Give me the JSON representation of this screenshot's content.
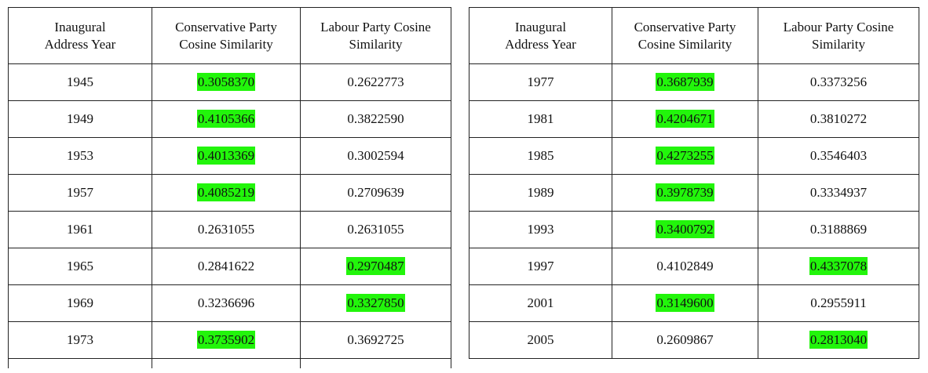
{
  "highlight_color": "#22f50b",
  "headers": [
    "Inaugural\nAddress Year",
    "Conservative Party\nCosine Similarity",
    "Labour Party Cosine\nSimilarity"
  ],
  "tables": [
    {
      "rows": [
        {
          "year": "1945",
          "conservative": "0.3058370",
          "labour": "0.2622773",
          "highlight": "conservative"
        },
        {
          "year": "1949",
          "conservative": "0.4105366",
          "labour": "0.3822590",
          "highlight": "conservative"
        },
        {
          "year": "1953",
          "conservative": "0.4013369",
          "labour": "0.3002594",
          "highlight": "conservative"
        },
        {
          "year": "1957",
          "conservative": "0.4085219",
          "labour": "0.2709639",
          "highlight": "conservative"
        },
        {
          "year": "1961",
          "conservative": "0.2631055",
          "labour": "0.2631055",
          "highlight": "none"
        },
        {
          "year": "1965",
          "conservative": "0.2841622",
          "labour": "0.2970487",
          "highlight": "labour"
        },
        {
          "year": "1969",
          "conservative": "0.3236696",
          "labour": "0.3327850",
          "highlight": "labour"
        },
        {
          "year": "1973",
          "conservative": "0.3735902",
          "labour": "0.3692725",
          "highlight": "conservative"
        }
      ]
    },
    {
      "rows": [
        {
          "year": "1977",
          "conservative": "0.3687939",
          "labour": "0.3373256",
          "highlight": "conservative"
        },
        {
          "year": "1981",
          "conservative": "0.4204671",
          "labour": "0.3810272",
          "highlight": "conservative"
        },
        {
          "year": "1985",
          "conservative": "0.4273255",
          "labour": "0.3546403",
          "highlight": "conservative"
        },
        {
          "year": "1989",
          "conservative": "0.3978739",
          "labour": "0.3334937",
          "highlight": "conservative"
        },
        {
          "year": "1993",
          "conservative": "0.3400792",
          "labour": "0.3188869",
          "highlight": "conservative"
        },
        {
          "year": "1997",
          "conservative": "0.4102849",
          "labour": "0.4337078",
          "highlight": "labour"
        },
        {
          "year": "2001",
          "conservative": "0.3149600",
          "labour": "0.2955911",
          "highlight": "conservative"
        },
        {
          "year": "2005",
          "conservative": "0.2609867",
          "labour": "0.2813040",
          "highlight": "labour"
        }
      ]
    }
  ]
}
